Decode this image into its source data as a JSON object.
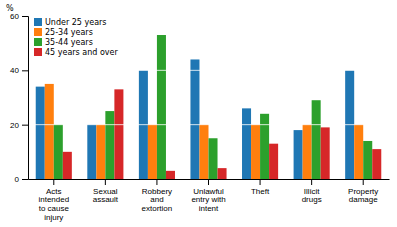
{
  "chart_data": {
    "type": "bar",
    "ylabel": "%",
    "categories": [
      "Acts\nintended\nto cause\ninjury",
      "Sexual\nassault",
      "Robbery\nand\nextortion",
      "Unlawful\nentry with\nintent",
      "Theft",
      "Illicit\ndrugs",
      "Property\ndamage"
    ],
    "series": [
      {
        "name": "Under 25 years",
        "values": [
          34,
          20,
          40,
          44,
          26,
          18,
          40
        ]
      },
      {
        "name": "25-34 years",
        "values": [
          35,
          20,
          20,
          20,
          20,
          20,
          20
        ]
      },
      {
        "name": "35-44 years",
        "values": [
          20,
          25,
          53,
          15,
          24,
          29,
          14
        ]
      },
      {
        "name": "45 years and over",
        "values": [
          10,
          33,
          3,
          4,
          13,
          19,
          11
        ]
      }
    ],
    "ylim": [
      0,
      60
    ],
    "yticks": [
      0,
      20,
      40,
      60
    ],
    "grid": true,
    "legend": "upper left"
  }
}
